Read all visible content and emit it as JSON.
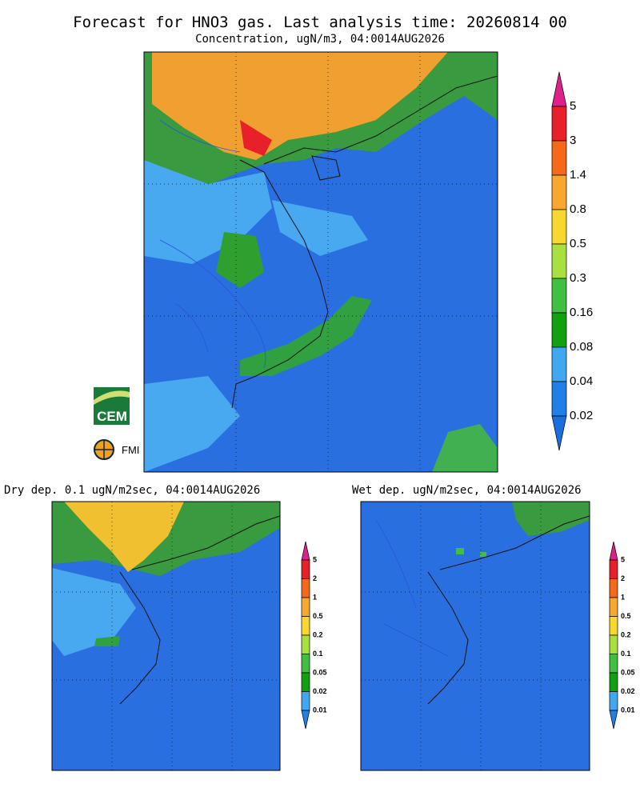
{
  "header": {
    "title": "Forecast for HNO3 gas. Last analysis time: 20260814 00",
    "subtitle": "Concentration, ugN/m3, 04:0014AUG2026"
  },
  "main_colorbar": {
    "labels": [
      5,
      3,
      1.4,
      0.8,
      0.5,
      0.3,
      0.16,
      0.08,
      0.04,
      0.02
    ],
    "colors": [
      "#e0208a",
      "#e8202a",
      "#f46a1a",
      "#f8a830",
      "#f8d830",
      "#a8e040",
      "#40c040",
      "#10a010",
      "#40a8f0",
      "#2080e8",
      "#1a6fe0"
    ]
  },
  "panels": [
    {
      "title": "Dry dep. 0.1 ugN/m2sec, 04:0014AUG2026",
      "colorbar": {
        "labels": [
          5,
          2,
          1,
          0.5,
          0.2,
          0.1,
          0.05,
          0.02,
          0.01
        ],
        "colors": [
          "#e0208a",
          "#e8202a",
          "#f46a1a",
          "#f8a830",
          "#f8d830",
          "#a8e040",
          "#40c040",
          "#10a010",
          "#40a8f0",
          "#2080e8"
        ]
      }
    },
    {
      "title": "Wet dep. ugN/m2sec, 04:0014AUG2026",
      "colorbar": {
        "labels": [
          5,
          2,
          1,
          0.5,
          0.2,
          0.1,
          0.05,
          0.02,
          0.01
        ],
        "colors": [
          "#e0208a",
          "#e8202a",
          "#f46a1a",
          "#f8a830",
          "#f8d830",
          "#a8e040",
          "#40c040",
          "#10a010",
          "#40a8f0",
          "#2080e8"
        ]
      }
    }
  ],
  "logos": {
    "cem": "CEM",
    "fmi": "FMI"
  }
}
